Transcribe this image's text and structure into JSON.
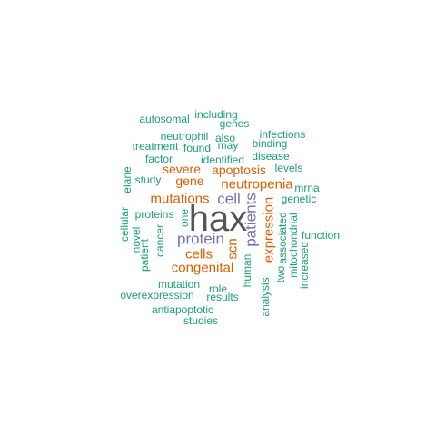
{
  "colors": {
    "teal": "#1b9e77",
    "orange": "#d95f02",
    "purple": "#7570b3",
    "gray": "#555555"
  },
  "words": [
    {
      "text": "hax",
      "color": "gray",
      "vertical": false
    },
    {
      "text": "protein",
      "color": "purple",
      "vertical": false
    },
    {
      "text": "cell",
      "color": "purple",
      "vertical": false
    },
    {
      "text": "patients",
      "color": "purple",
      "vertical": true
    },
    {
      "text": "neutropenia",
      "color": "orange",
      "vertical": false
    },
    {
      "text": "mutations",
      "color": "orange",
      "vertical": false
    },
    {
      "text": "cells",
      "color": "orange",
      "vertical": false
    },
    {
      "text": "congenital",
      "color": "orange",
      "vertical": false
    },
    {
      "text": "expression",
      "color": "orange",
      "vertical": true
    },
    {
      "text": "scn",
      "color": "orange",
      "vertical": true
    },
    {
      "text": "apoptosis",
      "color": "orange",
      "vertical": false
    },
    {
      "text": "severe",
      "color": "orange",
      "vertical": false
    },
    {
      "text": "gene",
      "color": "orange",
      "vertical": false
    },
    {
      "text": "autosomal",
      "color": "teal",
      "vertical": false
    },
    {
      "text": "including",
      "color": "teal",
      "vertical": false
    },
    {
      "text": "genes",
      "color": "teal",
      "vertical": false
    },
    {
      "text": "neutrophil",
      "color": "teal",
      "vertical": false
    },
    {
      "text": "also",
      "color": "teal",
      "vertical": false
    },
    {
      "text": "infections",
      "color": "teal",
      "vertical": false
    },
    {
      "text": "treatment",
      "color": "teal",
      "vertical": false
    },
    {
      "text": "found",
      "color": "teal",
      "vertical": false
    },
    {
      "text": "may",
      "color": "teal",
      "vertical": false
    },
    {
      "text": "binding",
      "color": "teal",
      "vertical": false
    },
    {
      "text": "factor",
      "color": "teal",
      "vertical": false
    },
    {
      "text": "identified",
      "color": "teal",
      "vertical": false
    },
    {
      "text": "disease",
      "color": "teal",
      "vertical": false
    },
    {
      "text": "levels",
      "color": "teal",
      "vertical": false
    },
    {
      "text": "study",
      "color": "teal",
      "vertical": false
    },
    {
      "text": "elane",
      "color": "teal",
      "vertical": true
    },
    {
      "text": "mrna",
      "color": "teal",
      "vertical": false
    },
    {
      "text": "genetic",
      "color": "teal",
      "vertical": false
    },
    {
      "text": "proteins",
      "color": "teal",
      "vertical": false
    },
    {
      "text": "one",
      "color": "teal",
      "vertical": true
    },
    {
      "text": "cellular",
      "color": "teal",
      "vertical": true
    },
    {
      "text": "novel",
      "color": "teal",
      "vertical": true
    },
    {
      "text": "patient",
      "color": "teal",
      "vertical": true
    },
    {
      "text": "cancer",
      "color": "teal",
      "vertical": true
    },
    {
      "text": "human",
      "color": "teal",
      "vertical": true
    },
    {
      "text": "analysis",
      "color": "teal",
      "vertical": true
    },
    {
      "text": "two",
      "color": "teal",
      "vertical": true
    },
    {
      "text": "associated",
      "color": "teal",
      "vertical": true
    },
    {
      "text": "mitochondrial",
      "color": "teal",
      "vertical": true
    },
    {
      "text": "increased",
      "color": "teal",
      "vertical": true
    },
    {
      "text": "function",
      "color": "teal",
      "vertical": false
    },
    {
      "text": "mutation",
      "color": "teal",
      "vertical": false
    },
    {
      "text": "role",
      "color": "teal",
      "vertical": false
    },
    {
      "text": "overexpression",
      "color": "teal",
      "vertical": false
    },
    {
      "text": "results",
      "color": "teal",
      "vertical": false
    },
    {
      "text": "antiapoptotic",
      "color": "teal",
      "vertical": false
    },
    {
      "text": "studies",
      "color": "teal",
      "vertical": false
    }
  ]
}
